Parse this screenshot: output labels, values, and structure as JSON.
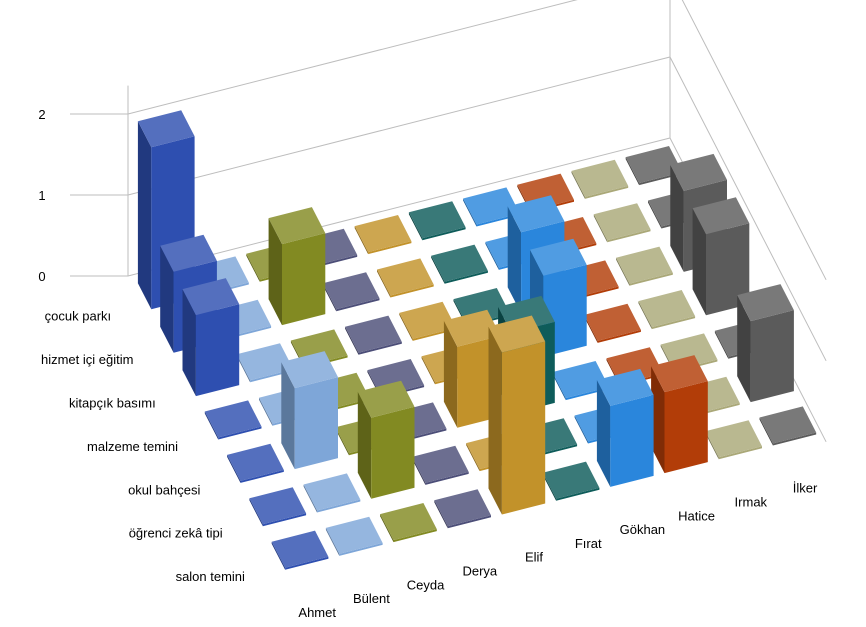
{
  "chart_data": {
    "type": "bar",
    "subtype": "3d-column",
    "title": "",
    "zlim": [
      0,
      2
    ],
    "z_ticks": [
      "0",
      "1",
      "2"
    ],
    "gridlines": true,
    "legend": "none",
    "rows": [
      "çocuk parkı",
      "hizmet içi eğitim",
      "kitapçık basımı",
      "malzeme temini",
      "okul bahçesi",
      "öğrenci zekâ tipi",
      "salon temini"
    ],
    "series": [
      {
        "name": "Ahmet",
        "color": "#2e4fb0",
        "values": [
          2,
          1,
          1,
          0,
          0,
          0,
          0
        ]
      },
      {
        "name": "Bülent",
        "color": "#7ea6d8",
        "values": [
          0,
          0,
          0,
          0,
          1,
          0,
          0
        ]
      },
      {
        "name": "Ceyda",
        "color": "#828a22",
        "values": [
          0,
          1,
          0,
          0,
          0,
          1,
          0
        ]
      },
      {
        "name": "Derya",
        "color": "#4c4e78",
        "values": [
          0,
          0,
          0,
          0,
          0,
          0,
          0
        ]
      },
      {
        "name": "Elif",
        "color": "#c2922a",
        "values": [
          0,
          0,
          0,
          0,
          1,
          0,
          2
        ]
      },
      {
        "name": "Fırat",
        "color": "#0e5c5a",
        "values": [
          0,
          0,
          0,
          0,
          1,
          0,
          0
        ]
      },
      {
        "name": "Gökhan",
        "color": "#2a86dc",
        "values": [
          0,
          0,
          1,
          1,
          0,
          0,
          1
        ]
      },
      {
        "name": "Hatice",
        "color": "#b23d08",
        "values": [
          0,
          0,
          0,
          0,
          0,
          0,
          1
        ]
      },
      {
        "name": "Irmak",
        "color": "#aaa878",
        "values": [
          0,
          0,
          0,
          0,
          0,
          0,
          0
        ]
      },
      {
        "name": "İlker",
        "color": "#5b5b5b",
        "values": [
          0,
          0,
          1,
          1,
          0,
          1,
          0
        ]
      }
    ]
  }
}
